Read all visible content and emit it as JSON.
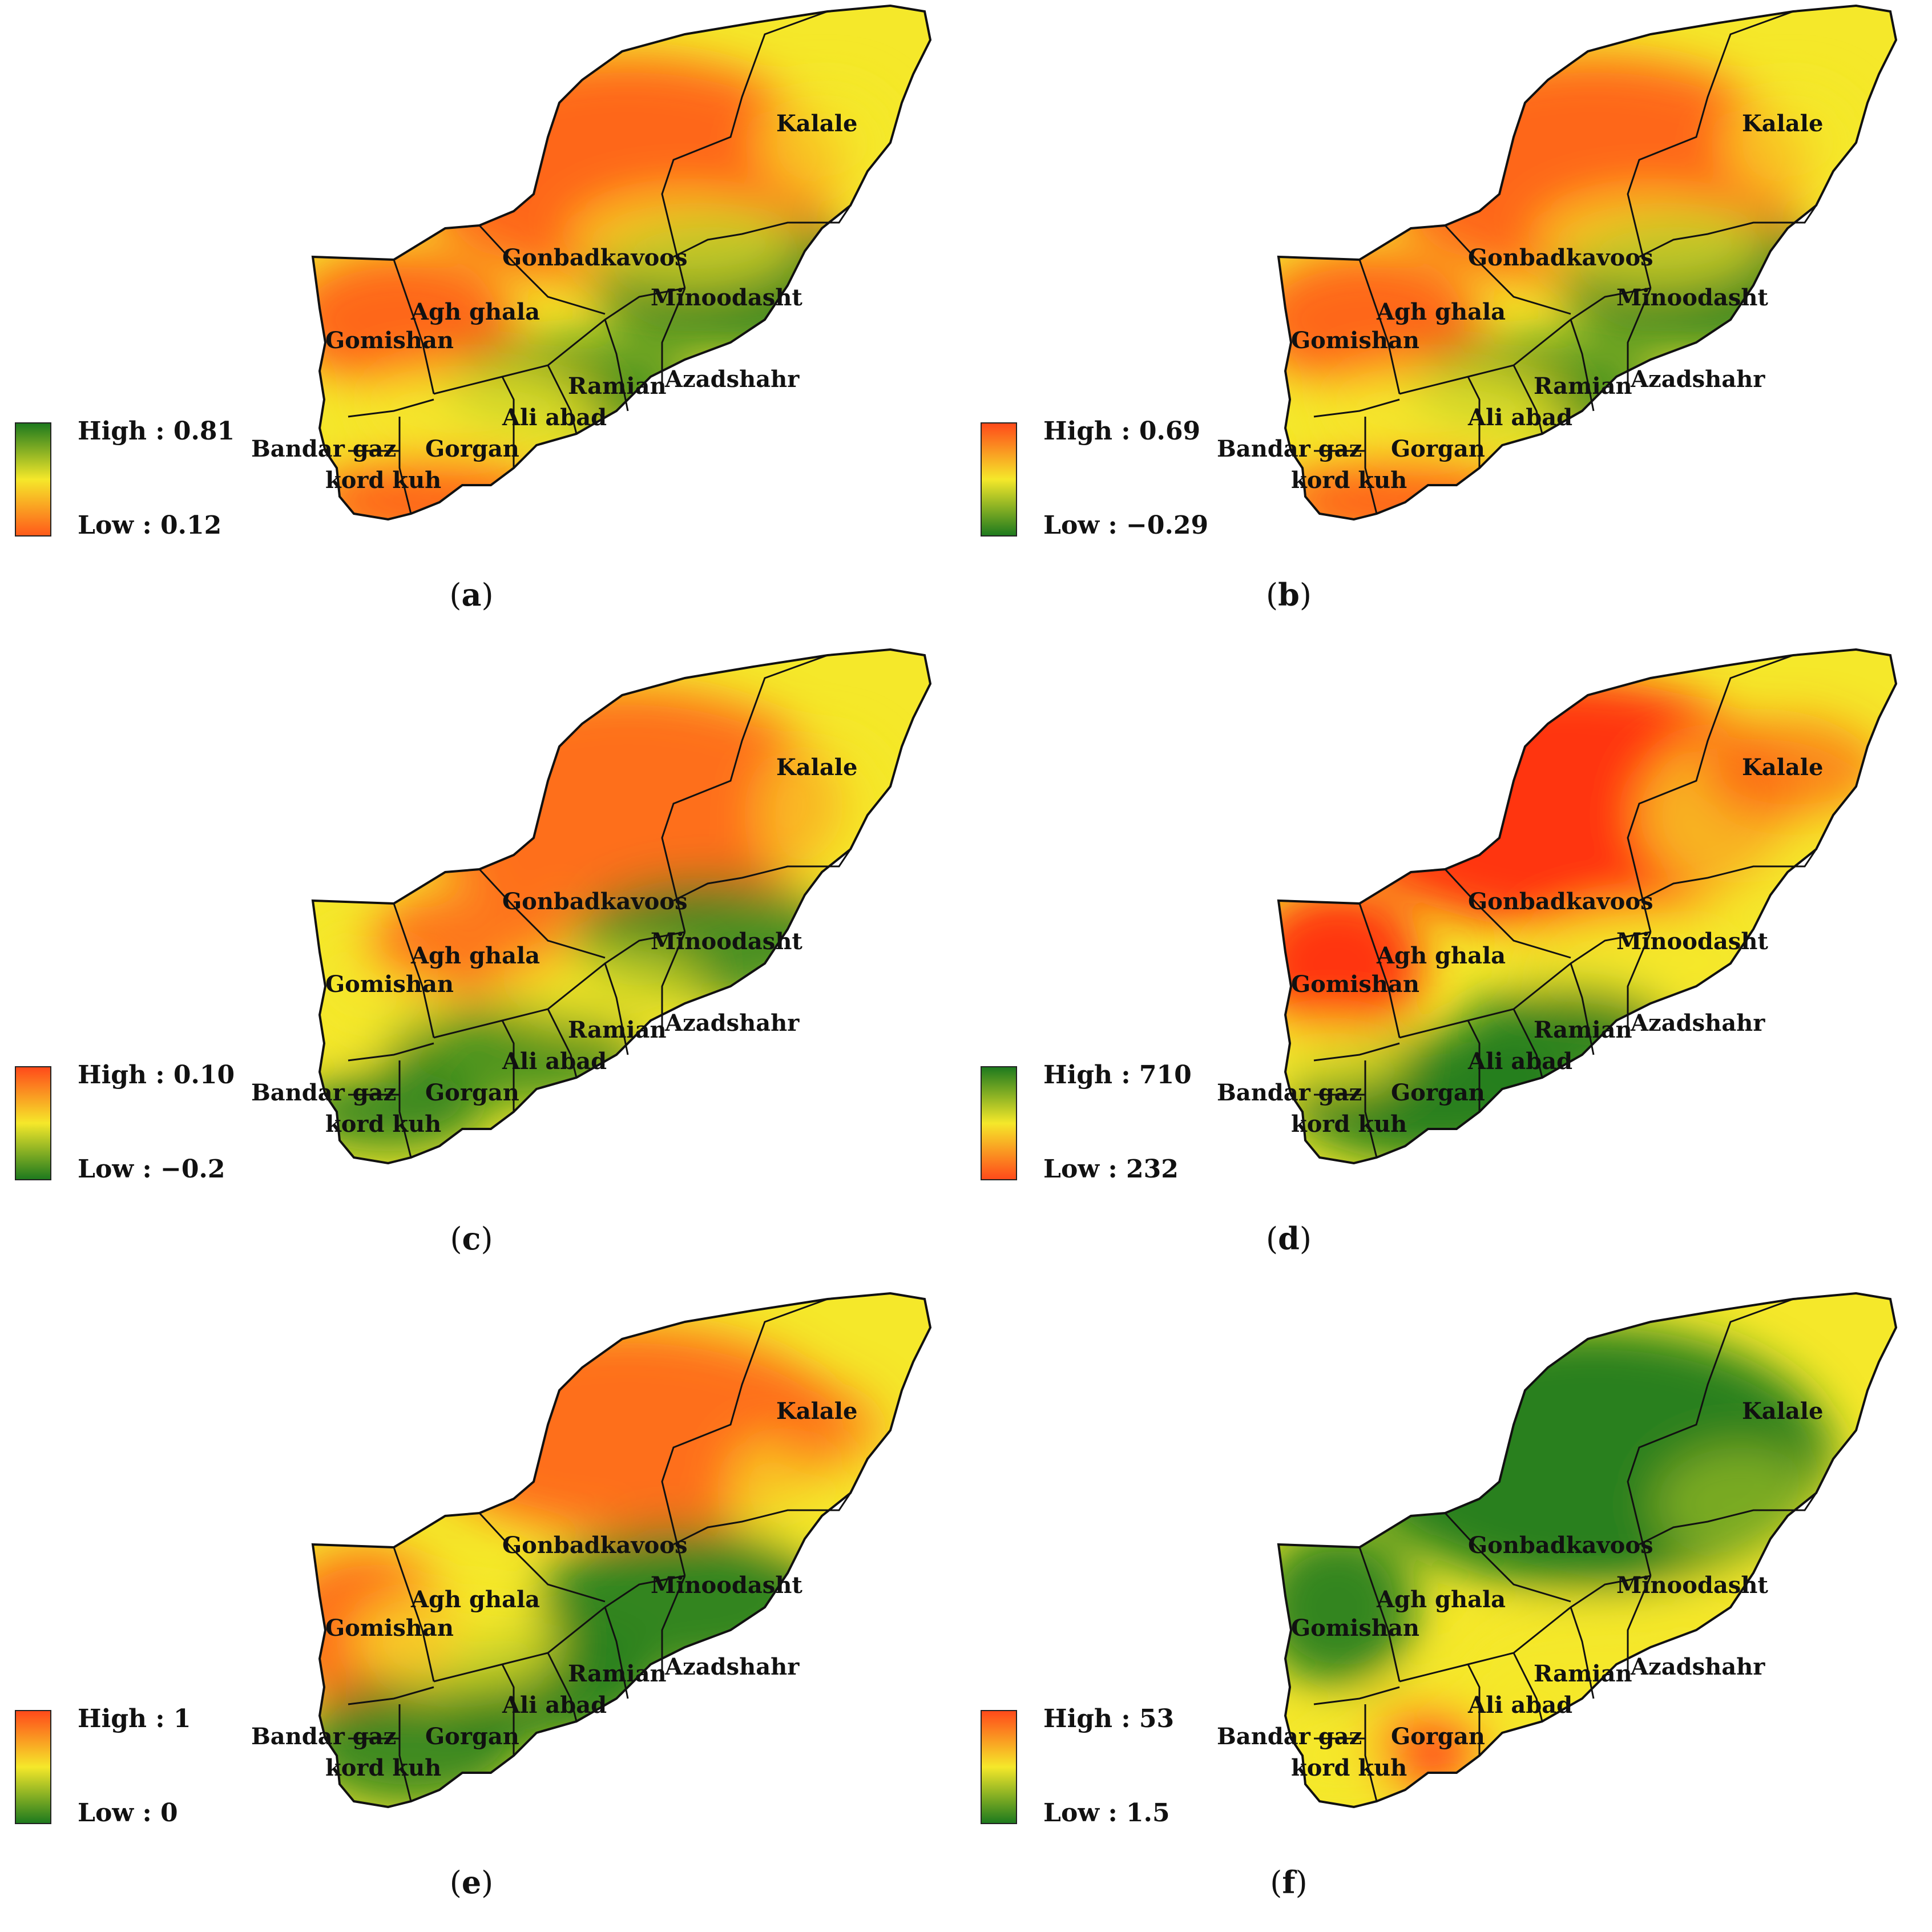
{
  "panels": [
    {
      "id": "a",
      "caption": "a",
      "legend": {
        "high_label": "High :",
        "high_value": "0.81",
        "low_label": "Low :",
        "low_value": "0.12",
        "colors": [
          "#1e7a1e",
          "#f5e82a",
          "#ff5a1a"
        ]
      },
      "scheme": [
        "#ff5a1a",
        "#f5e82a",
        "#1e7a1e"
      ]
    },
    {
      "id": "b",
      "caption": "b",
      "legend": {
        "high_label": "High :",
        "high_value": "0.69",
        "low_label": "Low :",
        "low_value": "−0.29",
        "colors": [
          "#ff4a1a",
          "#f5e82a",
          "#1e7a1e"
        ]
      },
      "scheme": [
        "#ff5a1a",
        "#f5e82a",
        "#1e7a1e"
      ]
    },
    {
      "id": "c",
      "caption": "c",
      "legend": {
        "high_label": "High :",
        "high_value": "0.10",
        "low_label": "Low :",
        "low_value": "−0.2",
        "colors": [
          "#ff4a1a",
          "#f5e82a",
          "#1e7a1e"
        ]
      },
      "scheme": [
        "#ff5a1a",
        "#f5e82a",
        "#1e7a1e"
      ]
    },
    {
      "id": "d",
      "caption": "d",
      "legend": {
        "high_label": "High :",
        "high_value": "710",
        "low_label": "Low :",
        "low_value": "232",
        "colors": [
          "#1e7a1e",
          "#f5e82a",
          "#ff4a1a"
        ]
      },
      "scheme": [
        "#ff2a0a",
        "#f5e82a",
        "#1e7a1e"
      ]
    },
    {
      "id": "e",
      "caption": "e",
      "legend": {
        "high_label": "High :",
        "high_value": "1",
        "low_label": "Low :",
        "low_value": "0",
        "colors": [
          "#ff4a1a",
          "#f5e82a",
          "#1e7a1e"
        ]
      },
      "scheme": [
        "#ff5a1a",
        "#f5e82a",
        "#1e7a1e"
      ]
    },
    {
      "id": "f",
      "caption": "f",
      "legend": {
        "high_label": "High :",
        "high_value": "53",
        "low_label": "Low :",
        "low_value": "1.5",
        "colors": [
          "#ff4a1a",
          "#f5e82a",
          "#1e7a1e"
        ]
      },
      "scheme": [
        "#1e7a1e",
        "#f5e82a",
        "#ff4a1a"
      ]
    }
  ],
  "counties": [
    "Kalale",
    "Gonbadkavoos",
    "Minoodasht",
    "Agh ghala",
    "Gomishan",
    "Ramian",
    "Azadshahr",
    "Ali abad",
    "Bandar gaz",
    "Gorgan",
    "kord kuh"
  ]
}
